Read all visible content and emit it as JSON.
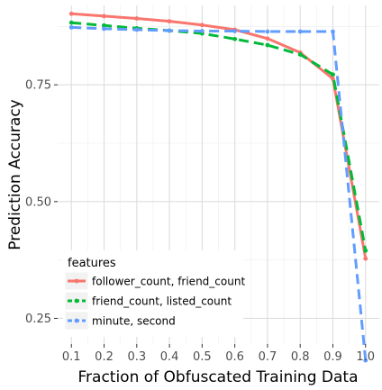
{
  "chart_data": {
    "type": "line",
    "xlabel": "Fraction of Obfuscated Training Data",
    "ylabel": "Prediction Accuracy",
    "x": [
      0.1,
      0.2,
      0.3,
      0.4,
      0.5,
      0.6,
      0.7,
      0.8,
      0.9,
      1.0
    ],
    "x_tick_labels": [
      "0.1",
      "0.2",
      "0.3",
      "0.4",
      "0.5",
      "0.6",
      "0.7",
      "0.8",
      "0.9",
      "1.0"
    ],
    "y_ticks": [
      0.25,
      0.5,
      0.75
    ],
    "y_tick_labels": [
      "0.25",
      "0.50",
      "0.75"
    ],
    "xlim": [
      0.058,
      1.042
    ],
    "ylim": [
      0.195,
      0.92
    ],
    "grid": true,
    "legend_title": "features",
    "legend_position": "bottom-left inside",
    "series": [
      {
        "name": "follower_count, friend_count",
        "color": "#F8766D",
        "dash": "solid",
        "values": [
          0.902,
          0.897,
          0.892,
          0.886,
          0.878,
          0.868,
          0.849,
          0.819,
          0.763,
          0.378
        ]
      },
      {
        "name": "friend_count, listed_count",
        "color": "#00BA38",
        "dash": "dashed",
        "values": [
          0.883,
          0.877,
          0.871,
          0.866,
          0.86,
          0.848,
          0.835,
          0.815,
          0.772,
          0.395
        ]
      },
      {
        "name": "minute, second",
        "color": "#619CFF",
        "dash": "dashed",
        "values": [
          0.873,
          0.87,
          0.868,
          0.866,
          0.865,
          0.865,
          0.864,
          0.864,
          0.864,
          0.16
        ]
      }
    ]
  }
}
